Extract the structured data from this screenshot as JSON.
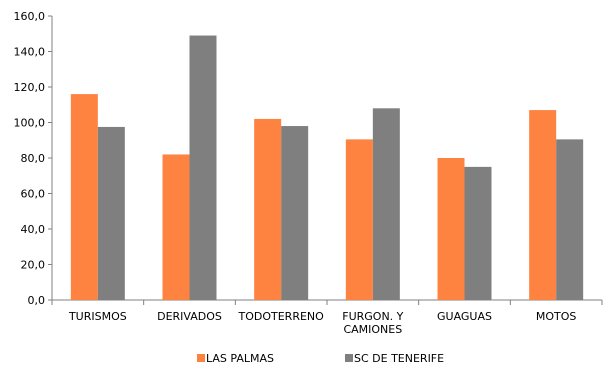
{
  "chart_data": {
    "type": "bar",
    "categories": [
      "TURISMOS",
      "DERIVADOS",
      "TODOTERRENO",
      "FURGON. Y CAMIONES",
      "GUAGUAS",
      "MOTOS"
    ],
    "category_lines": [
      [
        "TURISMOS"
      ],
      [
        "DERIVADOS"
      ],
      [
        "TODOTERRENO"
      ],
      [
        "FURGON. Y",
        "CAMIONES"
      ],
      [
        "GUAGUAS"
      ],
      [
        "MOTOS"
      ]
    ],
    "series": [
      {
        "name": "LAS PALMAS",
        "color": "#FF8340",
        "values": [
          116.0,
          82.0,
          102.0,
          90.5,
          80.0,
          107.0
        ]
      },
      {
        "name": "SC DE TENERIFE",
        "color": "#7F7F7F",
        "values": [
          97.5,
          149.0,
          98.0,
          108.0,
          75.0,
          90.5
        ]
      }
    ],
    "ylim": [
      0,
      160
    ],
    "yticks": [
      "0,0",
      "20,0",
      "40,0",
      "60,0",
      "80,0",
      "100,0",
      "120,0",
      "140,0",
      "160,0"
    ],
    "grid": false,
    "legend_position": "bottom"
  }
}
